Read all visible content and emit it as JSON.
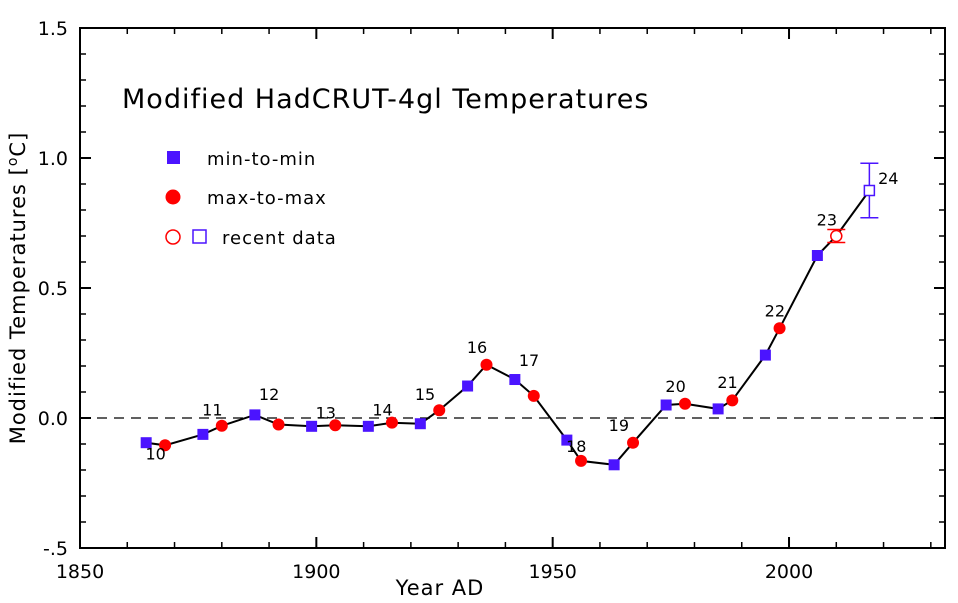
{
  "chart_data": {
    "type": "scatter",
    "title": "Modified HadCRUT-4gl Temperatures",
    "xlabel": "Year AD",
    "ylabel": "Modified Temperatures [°C]",
    "ylabel_parts": {
      "text": "Modified Temperatures [",
      "sup": "o",
      "unit": "C]"
    },
    "xlim": [
      1850,
      2033
    ],
    "ylim": [
      -0.5,
      1.5
    ],
    "xticks": [
      1850,
      1900,
      1950,
      2000
    ],
    "yticks": [
      1.5,
      1.0,
      0.5,
      0.0,
      -0.5
    ],
    "ytick_labels": [
      "1.5",
      "1.0",
      "0.5",
      "0.0",
      "-.5"
    ],
    "zero_line": true,
    "legend": {
      "placement": "top-left",
      "entries": [
        {
          "label": "min-to-min",
          "marker": "filled-square",
          "color": "#4b14ff"
        },
        {
          "label": "max-to-max",
          "marker": "filled-circle",
          "color": "#ff0000"
        },
        {
          "label": "recent data",
          "marker": "open-circle-and-open-square"
        }
      ]
    },
    "colors": {
      "min": "#4b14ff",
      "max": "#ff0000",
      "line": "#000000"
    },
    "series": [
      {
        "name": "min-to-min",
        "marker": "square",
        "x": [
          1864,
          1876,
          1887,
          1899,
          1911,
          1922,
          1932,
          1942,
          1953,
          1963,
          1974,
          1985,
          1995,
          2006
        ],
        "y": [
          -0.095,
          -0.063,
          0.012,
          -0.032,
          -0.032,
          -0.022,
          0.123,
          0.148,
          -0.085,
          -0.18,
          0.05,
          0.035,
          0.242,
          0.625
        ]
      },
      {
        "name": "max-to-max",
        "marker": "circle",
        "x": [
          1868,
          1880,
          1892,
          1904,
          1916,
          1926,
          1936,
          1946,
          1956,
          1967,
          1978,
          1988,
          1998
        ],
        "y": [
          -0.105,
          -0.03,
          -0.025,
          -0.028,
          -0.018,
          0.03,
          0.205,
          0.085,
          -0.165,
          -0.095,
          0.055,
          0.068,
          0.345
        ]
      },
      {
        "name": "recent data",
        "points": [
          {
            "x": 2010,
            "y": 0.7,
            "err": 0.025,
            "marker": "open-circle"
          },
          {
            "x": 2017,
            "y": 0.875,
            "err": 0.105,
            "marker": "open-square"
          }
        ]
      }
    ],
    "annotations": [
      {
        "text": "10",
        "x": 1866,
        "y": -0.16
      },
      {
        "text": "11",
        "x": 1878,
        "y": 0.01
      },
      {
        "text": "12",
        "x": 1890,
        "y": 0.07
      },
      {
        "text": "13",
        "x": 1902,
        "y": -0.001
      },
      {
        "text": "14",
        "x": 1914,
        "y": 0.01
      },
      {
        "text": "15",
        "x": 1923,
        "y": 0.07
      },
      {
        "text": "16",
        "x": 1934,
        "y": 0.25
      },
      {
        "text": "17",
        "x": 1945,
        "y": 0.2
      },
      {
        "text": "18",
        "x": 1955,
        "y": -0.13
      },
      {
        "text": "19",
        "x": 1964,
        "y": -0.05
      },
      {
        "text": "20",
        "x": 1976,
        "y": 0.1
      },
      {
        "text": "21",
        "x": 1987,
        "y": 0.115
      },
      {
        "text": "22",
        "x": 1997,
        "y": 0.39
      },
      {
        "text": "23",
        "x": 2008,
        "y": 0.74
      },
      {
        "text": "24",
        "x": 2021,
        "y": 0.9
      }
    ]
  }
}
